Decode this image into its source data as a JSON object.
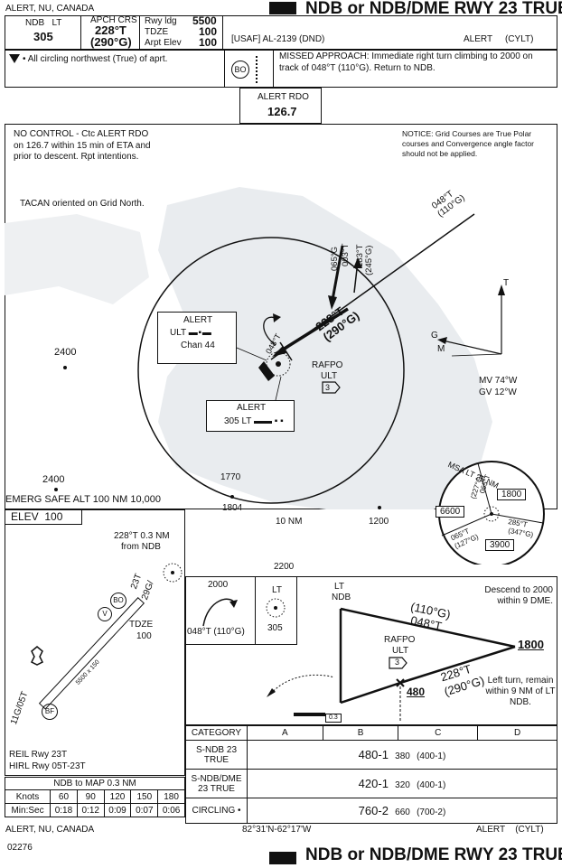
{
  "header": {
    "location": "ALERT, NU, CANADA",
    "title": "NDB or NDB/DME RWY 23 TRUE",
    "ndb_label": "NDB",
    "ndb_ident": "LT",
    "ndb_freq": "305",
    "apch_crs_label": "APCH CRS",
    "apch_crs_true": "228°T",
    "apch_crs_grid": "(290°G)",
    "rwy_ldg_label": "Rwy ldg",
    "rwy_ldg_value": "5500",
    "tdze_label": "TDZE",
    "tdze_value": "100",
    "arpt_elev_label": "Arpt Elev",
    "arpt_elev_value": "100",
    "chart_ref": "[USAF]  AL-2139  (DND)",
    "airport": "ALERT",
    "airport_code": "(CYLT)"
  },
  "notes": {
    "circling": "All circling northwest (True) of aprt.",
    "missed_approach": "MISSED APPROACH: Immediate right turn climbing to 2000 on track of 048°T (110°G). Return to NDB.",
    "bo_badge": "BO"
  },
  "comm": {
    "label": "ALERT RDO",
    "freq": "126.7"
  },
  "plan": {
    "no_control": "NO CONTROL - Ctc ALERT RDO on 126.7 within 15 min of ETA and prior to descent. Rpt intentions.",
    "notice": "NOTICE: Grid Courses are True Polar courses and Convergence angle factor should not be applied.",
    "tacan": "TACAN oriented on Grid North.",
    "alert_tacan_name": "ALERT",
    "alert_tacan_ident": "ULT",
    "alert_tacan_chan": "Chan 44",
    "alert_ndb_name": "ALERT",
    "alert_ndb_ident": "305  LT",
    "rafpo_name": "RAFPO",
    "rafpo_ident": "ULT",
    "rafpo_dme": "3",
    "missed_track": "048°T",
    "missed_track_grid": "(110°G)",
    "final_true": "228°T",
    "final_grid": "(290°G)",
    "inbound_true": "065°G",
    "inbound_003": "003°T",
    "inbound_183": "183°T",
    "inbound_245": "(245°G)",
    "hold_course": "048°T",
    "elev_2400_a": "2400",
    "elev_2400_b": "2400",
    "elev_1770": "1770",
    "elev_1804": "1804",
    "elev_1200": "1200",
    "ring_label": "10 NM",
    "mv": "MV 74°W",
    "gv": "GV 12°W",
    "arrow_t": "T",
    "arrow_g": "G",
    "arrow_m": "M",
    "emerg_safe_alt": "EMERG SAFE ALT 100 NM 10,000"
  },
  "msa": {
    "label": "MSA   LT   25 NM",
    "alt_1800": "1800",
    "alt_6600": "6600",
    "alt_3900": "3900",
    "brg_065": "065°T",
    "brg_227": "(227°G)",
    "brg_285": "285°T",
    "brg_347": "(347°G)",
    "brg_065b": "065°T",
    "brg_127": "(127°G)",
    "brg_165": "165°T"
  },
  "airport_diagram": {
    "elev_label": "ELEV",
    "elev_value": "100",
    "crs_text": "228°T 0.3 NM",
    "from_ndb": "from NDB",
    "rwy_23": "23T",
    "rwy_29g": "29G/",
    "tdze": "TDZE",
    "tdze_val": "100",
    "rwy_dims": "5500 x 150",
    "rwy_05": "11G/05T",
    "reil": "REIL Rwy 23T",
    "hirl": "HIRL Rwy 05T-23T",
    "badge_bo": "BO",
    "badge_v": "V",
    "badge_bf": "BF"
  },
  "profile": {
    "procedure_turn_alt": "2000",
    "procedure_turn_crs": "048°T (110°G)",
    "ndb_lt": "LT",
    "ndb_ndb": "NDB",
    "ndb_freq": "305",
    "elev_2200": "2200",
    "descend_note": "Descend to 2000 within 9 DME.",
    "grid_110": "(110°G)",
    "true_048": "048°T",
    "alt_1800": "1800",
    "rafpo": "RAFPO",
    "rafpo_ident": "ULT",
    "rafpo_dme": "3",
    "final_true": "228°T",
    "final_grid": "(290°G)",
    "min_alt": "480",
    "left_turn_note": "Left turn, remain within 9 NM of LT NDB.",
    "dist_marker": "0.3"
  },
  "minimums": {
    "category_label": "CATEGORY",
    "categories": [
      "A",
      "B",
      "C",
      "D"
    ],
    "rows": [
      {
        "name": "S-NDB 23 TRUE",
        "mda": "480-1",
        "hat": "380",
        "extra": "(400-1)"
      },
      {
        "name": "S-NDB/DME 23 TRUE",
        "mda": "420-1",
        "hat": "320",
        "extra": "(400-1)"
      },
      {
        "name": "CIRCLING •",
        "mda": "760-2",
        "hat": "660",
        "extra": "(700-2)"
      }
    ]
  },
  "timing": {
    "title": "NDB to MAP 0.3 NM",
    "knots_label": "Knots",
    "knots": [
      "60",
      "90",
      "120",
      "150",
      "180"
    ],
    "minsec_label": "Min:Sec",
    "times": [
      "0:18",
      "0:12",
      "0:09",
      "0:07",
      "0:06"
    ]
  },
  "footer": {
    "location": "ALERT, NU, CANADA",
    "coords": "82°31'N-62°17'W",
    "airport": "ALERT",
    "airport_code": "(CYLT)",
    "date_code": "02276",
    "title": "NDB or NDB/DME RWY 23 TRUE"
  }
}
